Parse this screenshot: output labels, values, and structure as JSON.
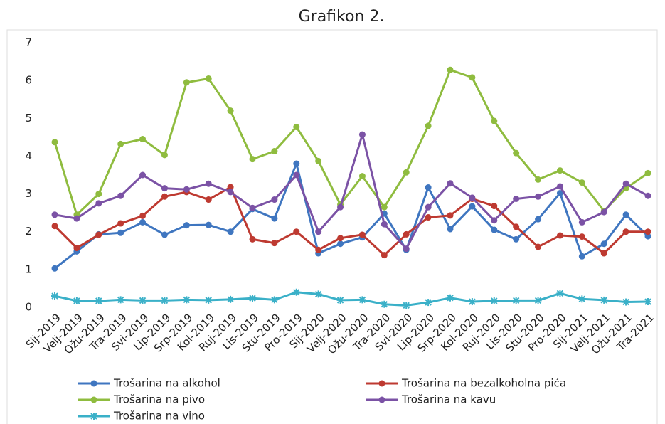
{
  "chart_data": {
    "type": "line",
    "title": "Grafikon 2.",
    "categories": [
      "Sij-2019",
      "Velj-2019",
      "Ožu-2019",
      "Tra-2019",
      "Svi-2019",
      "Lip-2019",
      "Srp-2019",
      "Kol-2019",
      "Ruj-2019",
      "Lis-2019",
      "Stu-2019",
      "Pro-2019",
      "Sij-2020",
      "Velj-2020",
      "Ožu-2020",
      "Tra-2020",
      "Svi-2020",
      "Lip-2020",
      "Srp-2020",
      "Kol-2020",
      "Ruj-2020",
      "Lis-2020",
      "Stu-2020",
      "Pro-2020",
      "Sij-2021",
      "Velj-2021",
      "Ožu-2021",
      "Tra-2021"
    ],
    "series": [
      {
        "name": "Trošarina na alkohol",
        "color": "#3f76c0",
        "marker": "circle",
        "values": [
          1.03,
          1.48,
          1.93,
          1.97,
          2.25,
          1.92,
          2.17,
          2.18,
          2.0,
          2.6,
          2.35,
          3.8,
          1.43,
          1.68,
          1.85,
          2.48,
          1.52,
          3.17,
          2.07,
          2.67,
          2.05,
          1.8,
          2.33,
          3.02,
          1.35,
          1.68,
          2.45,
          1.88
        ]
      },
      {
        "name": "Trošarina na bezalkoholna pića",
        "color": "#be3a31",
        "marker": "circle",
        "values": [
          2.15,
          1.57,
          1.92,
          2.22,
          2.42,
          2.93,
          3.05,
          2.85,
          3.18,
          1.8,
          1.7,
          2.0,
          1.52,
          1.83,
          1.92,
          1.38,
          1.93,
          2.38,
          2.43,
          2.87,
          2.68,
          2.13,
          1.6,
          1.9,
          1.87,
          1.43,
          2.0,
          2.0
        ]
      },
      {
        "name": "Trošarina na pivo",
        "color": "#8fbc3f",
        "marker": "circle",
        "values": [
          4.37,
          2.45,
          3.0,
          4.32,
          4.45,
          4.03,
          5.95,
          6.05,
          5.2,
          3.92,
          4.13,
          4.77,
          3.87,
          2.72,
          3.47,
          2.65,
          3.57,
          4.8,
          6.28,
          6.08,
          4.93,
          4.08,
          3.38,
          3.62,
          3.3,
          2.55,
          3.15,
          3.55
        ]
      },
      {
        "name": "Trošarina na kavu",
        "color": "#7b52a5",
        "marker": "circle",
        "values": [
          2.45,
          2.35,
          2.75,
          2.95,
          3.5,
          3.15,
          3.12,
          3.27,
          3.05,
          2.63,
          2.85,
          3.5,
          2.0,
          2.65,
          4.57,
          2.2,
          1.55,
          2.65,
          3.28,
          2.9,
          2.3,
          2.87,
          2.93,
          3.2,
          2.25,
          2.52,
          3.27,
          2.95
        ]
      },
      {
        "name": "Trošarina na vino",
        "color": "#3ab0c8",
        "marker": "star",
        "values": [
          0.3,
          0.17,
          0.17,
          0.2,
          0.18,
          0.18,
          0.2,
          0.19,
          0.21,
          0.24,
          0.2,
          0.4,
          0.35,
          0.19,
          0.2,
          0.08,
          0.05,
          0.13,
          0.25,
          0.15,
          0.17,
          0.18,
          0.18,
          0.37,
          0.22,
          0.19,
          0.14,
          0.15
        ]
      }
    ],
    "ylim": [
      0,
      7
    ],
    "yticks": [
      0,
      1,
      2,
      3,
      4,
      5,
      6,
      7
    ],
    "grid": false,
    "legend": "bottom"
  }
}
